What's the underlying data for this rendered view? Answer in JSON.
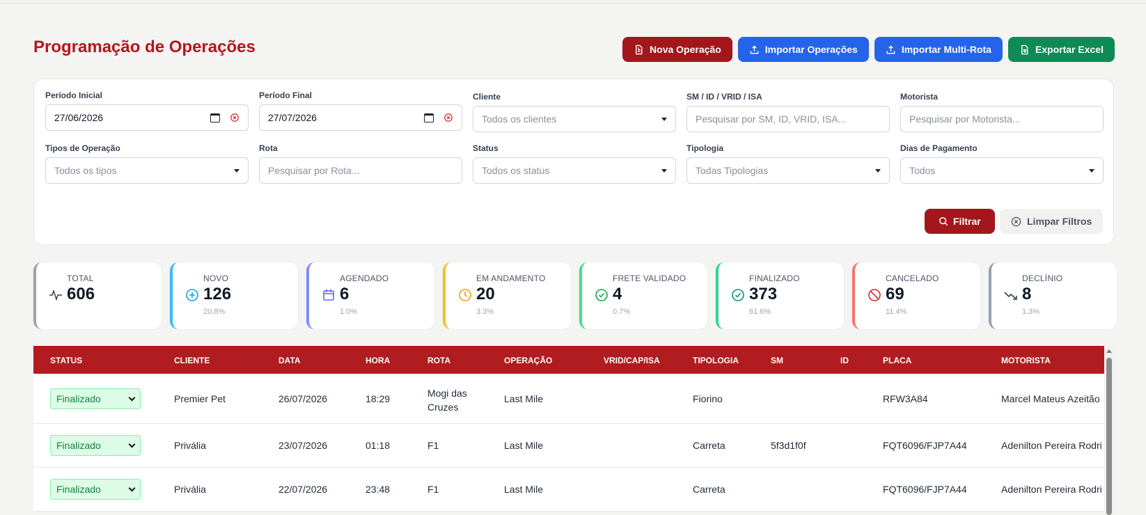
{
  "page": {
    "title": "Programação de Operações"
  },
  "actions": {
    "nova": "Nova Operação",
    "importar": "Importar Operações",
    "multi": "Importar Multi-Rota",
    "exportar": "Exportar Excel"
  },
  "filters": {
    "periodo_inicial": {
      "label": "Período Inicial",
      "value": "27/06/2026"
    },
    "periodo_final": {
      "label": "Período Final",
      "value": "27/07/2026"
    },
    "cliente": {
      "label": "Cliente",
      "placeholder": "Todos os clientes"
    },
    "sm": {
      "label": "SM / ID / VRID / ISA",
      "placeholder": "Pesquisar por SM, ID, VRID, ISA..."
    },
    "motorista": {
      "label": "Motorista",
      "placeholder": "Pesquisar por Motorista..."
    },
    "tipos": {
      "label": "Tipos de Operação",
      "placeholder": "Todos os tipos"
    },
    "rota": {
      "label": "Rota",
      "placeholder": "Pesquisar por Rota..."
    },
    "status": {
      "label": "Status",
      "placeholder": "Todos os status"
    },
    "tipologia": {
      "label": "Tipologia",
      "placeholder": "Todas Tipologias"
    },
    "dias": {
      "label": "Dias de Pagamento",
      "placeholder": "Todos"
    },
    "filtrar": "Filtrar",
    "limpar": "Limpar Filtros"
  },
  "stats": [
    {
      "label": "TOTAL",
      "value": "606",
      "pct": "",
      "color": "#9ca3af",
      "icon": "activity-icon"
    },
    {
      "label": "NOVO",
      "value": "126",
      "pct": "20.8%",
      "color": "#38bdf8",
      "icon": "plus-circle-icon"
    },
    {
      "label": "AGENDADO",
      "value": "6",
      "pct": "1.0%",
      "color": "#818cf8",
      "icon": "calendar-icon"
    },
    {
      "label": "EM ANDAMENTO",
      "value": "20",
      "pct": "3.3%",
      "color": "#fbbf24",
      "icon": "clock-icon"
    },
    {
      "label": "FRETE VALIDADO",
      "value": "4",
      "pct": "0.7%",
      "color": "#4ade80",
      "icon": "check-circle-icon"
    },
    {
      "label": "FINALIZADO",
      "value": "373",
      "pct": "61.6%",
      "color": "#34d399",
      "icon": "check-circle-icon"
    },
    {
      "label": "CANCELADO",
      "value": "69",
      "pct": "11.4%",
      "color": "#f87171",
      "icon": "ban-icon"
    },
    {
      "label": "DECLÍNIO",
      "value": "8",
      "pct": "1.3%",
      "color": "#94a3b8",
      "icon": "trending-down-icon"
    }
  ],
  "table": {
    "headers": [
      "STATUS",
      "CLIENTE",
      "DATA",
      "HORA",
      "ROTA",
      "OPERAÇÃO",
      "VRID/CAP/ISA",
      "TIPOLOGIA",
      "SM",
      "ID",
      "PLACA",
      "MOTORISTA"
    ],
    "rows": [
      {
        "status": "Finalizado",
        "cliente": "Premier Pet",
        "data": "26/07/2026",
        "hora": "18:29",
        "rota": "Mogi das Cruzes",
        "operacao": "Last Mile",
        "vrid": "",
        "tipologia": "Fiorino",
        "sm": "",
        "id": "",
        "placa": "RFW3A84",
        "motorista": "Marcel Mateus Azeitão"
      },
      {
        "status": "Finalizado",
        "cliente": "Privália",
        "data": "23/07/2026",
        "hora": "01:18",
        "rota": "F1",
        "operacao": "Last Mile",
        "vrid": "",
        "tipologia": "Carreta",
        "sm": "5f3d1f0f",
        "id": "",
        "placa": "FQT6096/FJP7A44",
        "motorista": "Adenilton Pereira Rodri"
      },
      {
        "status": "Finalizado",
        "cliente": "Privália",
        "data": "22/07/2026",
        "hora": "23:48",
        "rota": "F1",
        "operacao": "Last Mile",
        "vrid": "",
        "tipologia": "Carreta",
        "sm": "",
        "id": "",
        "placa": "FQT6096/FJP7A44",
        "motorista": "Adenilton Pereira Rodri"
      }
    ]
  }
}
